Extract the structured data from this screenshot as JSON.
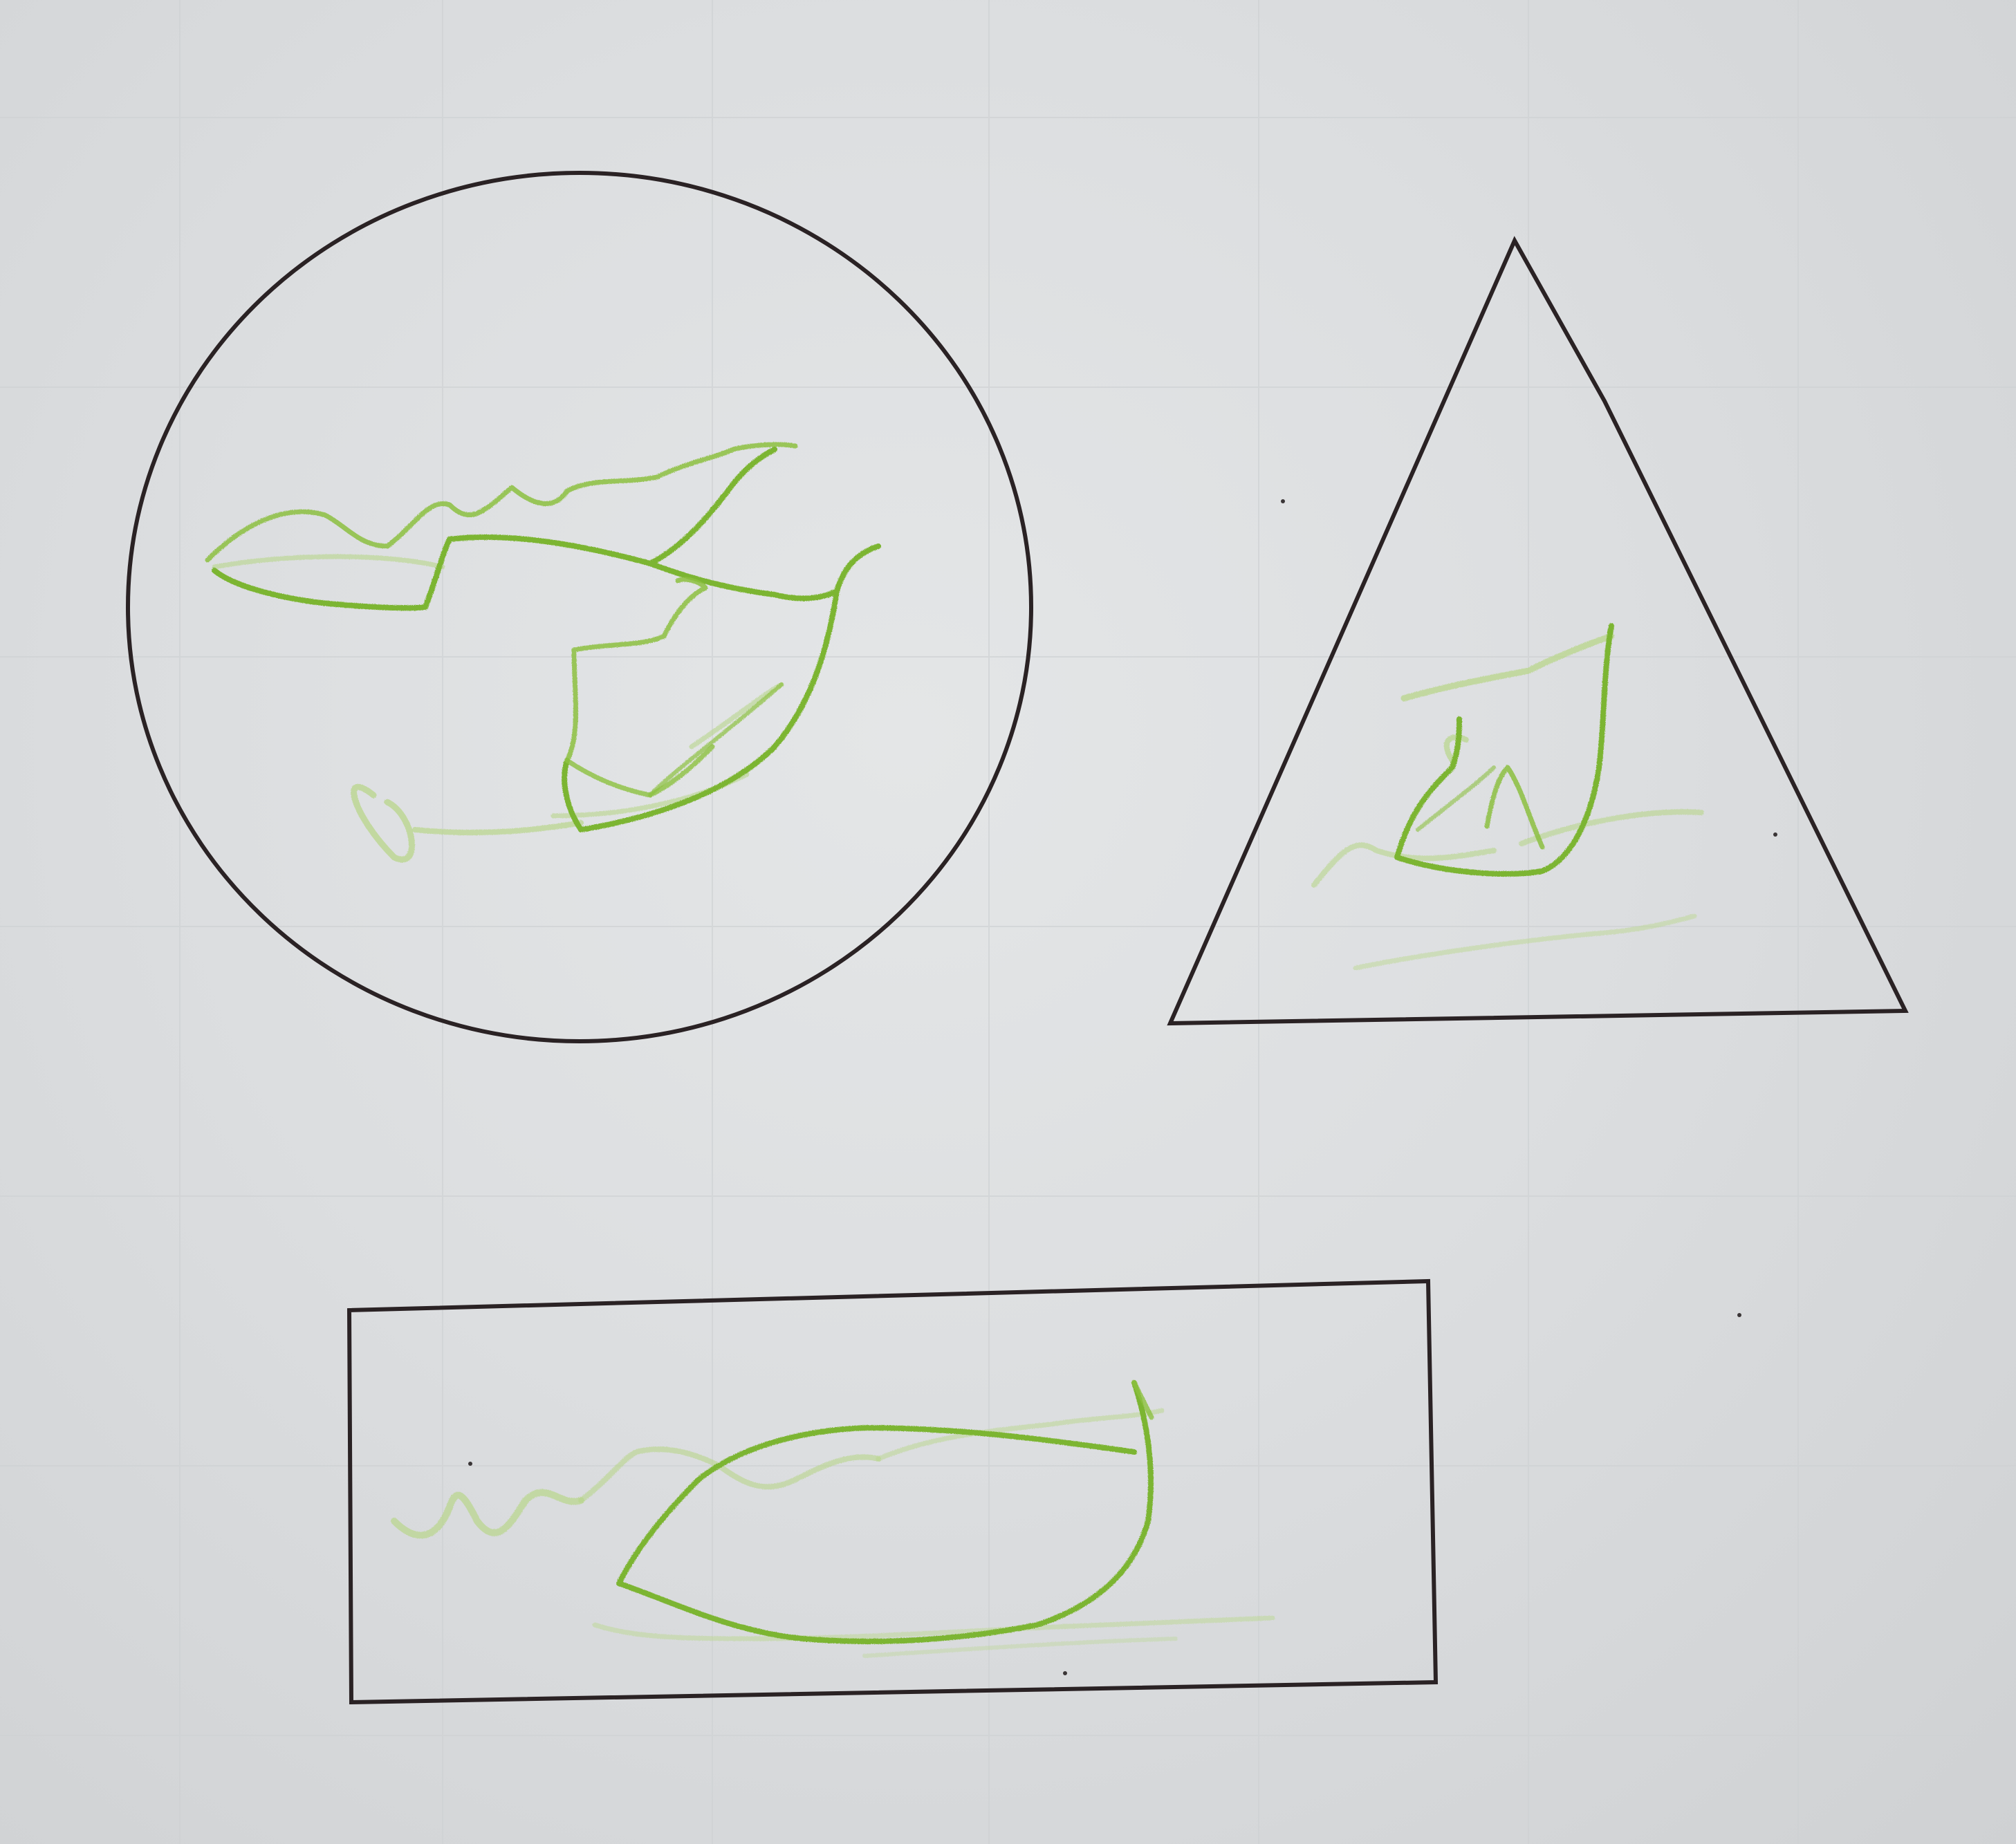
{
  "scene": {
    "subject": "worksheet-with-three-outlined-shapes",
    "shapes": [
      {
        "kind": "circle",
        "fill": "green-crayon-scribble"
      },
      {
        "kind": "triangle",
        "fill": "green-crayon-scribble"
      },
      {
        "kind": "rectangle",
        "fill": "green-crayon-scribble"
      }
    ],
    "colors": {
      "paper": "#dfe1e2",
      "grid": "#cfd2d4",
      "outline": "#2a2224",
      "crayon": "#7cb530",
      "crayon_light": "#b8d68a"
    }
  }
}
